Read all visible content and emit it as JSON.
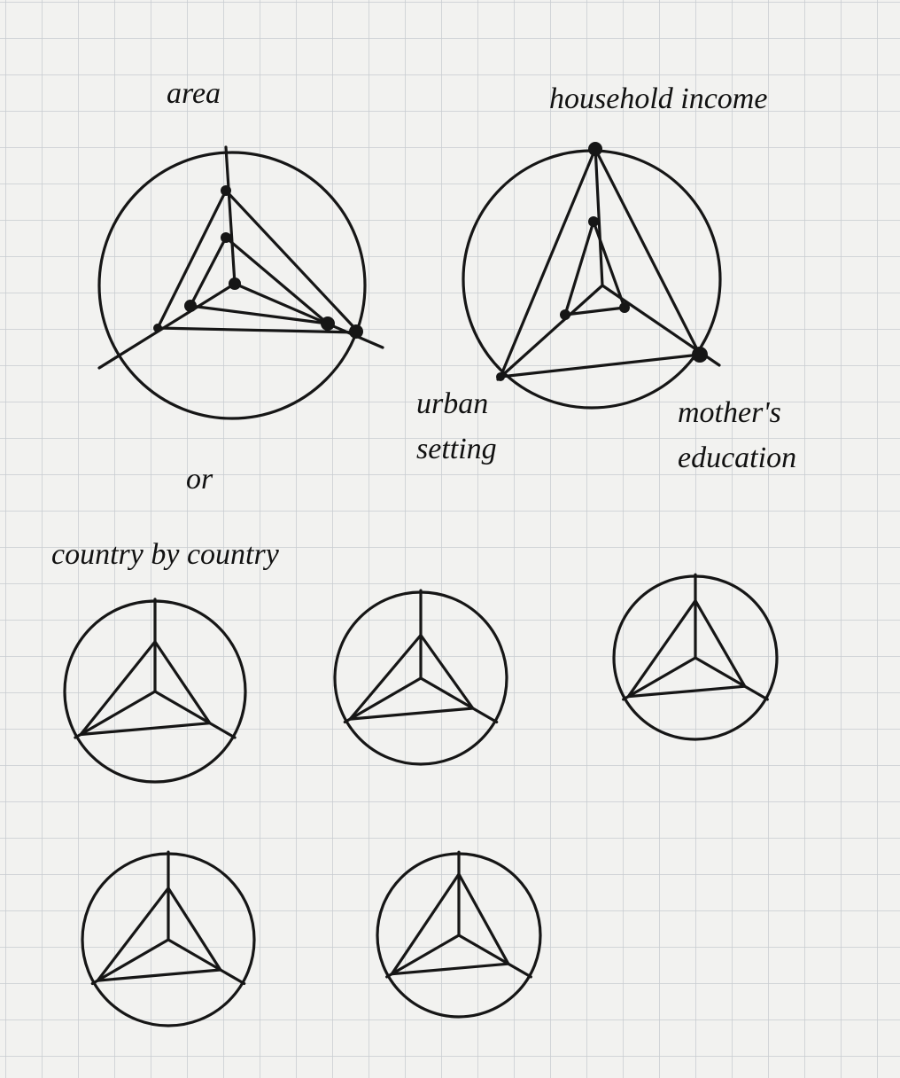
{
  "sketch_1": {
    "label": "area"
  },
  "sketch_2": {
    "top_label": "household income",
    "left_label": "urban setting",
    "right_label": "mother's education"
  },
  "separator": "or",
  "section_title": "country by country"
}
